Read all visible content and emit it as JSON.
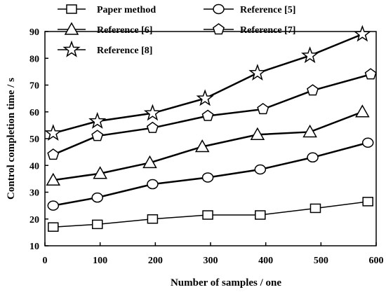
{
  "chart_data": {
    "type": "line",
    "title": "",
    "xlabel": "Number of samples / one",
    "ylabel": "Control completion time / s",
    "xlim": [
      0,
      600
    ],
    "ylim": [
      10,
      90
    ],
    "xticks": [
      0,
      100,
      200,
      300,
      400,
      500,
      600
    ],
    "yticks": [
      10,
      20,
      30,
      40,
      50,
      60,
      70,
      80,
      90
    ],
    "grid": false,
    "legend_position": "top",
    "series": [
      {
        "name": "Paper method",
        "marker": "square",
        "x": [
          15,
          95,
          195,
          295,
          390,
          490,
          585
        ],
        "y": [
          17,
          18,
          20,
          21.5,
          21.5,
          24,
          26.5
        ]
      },
      {
        "name": "Reference [5]",
        "marker": "circle",
        "x": [
          15,
          95,
          195,
          295,
          390,
          485,
          585
        ],
        "y": [
          25,
          28,
          33,
          35.5,
          38.5,
          43,
          48.5
        ]
      },
      {
        "name": "Reference [6]",
        "marker": "triangle",
        "x": [
          15,
          100,
          190,
          285,
          385,
          480,
          575
        ],
        "y": [
          34.5,
          37,
          41,
          47,
          51.5,
          52.5,
          60
        ]
      },
      {
        "name": "Reference [7]",
        "marker": "pentagon",
        "x": [
          15,
          95,
          195,
          295,
          395,
          485,
          590
        ],
        "y": [
          44,
          51,
          54,
          58.5,
          61,
          68,
          74
        ]
      },
      {
        "name": "Reference [8]",
        "marker": "star",
        "x": [
          15,
          95,
          195,
          290,
          385,
          480,
          575
        ],
        "y": [
          52,
          56.5,
          59.5,
          65,
          74.5,
          81,
          89
        ]
      }
    ]
  }
}
